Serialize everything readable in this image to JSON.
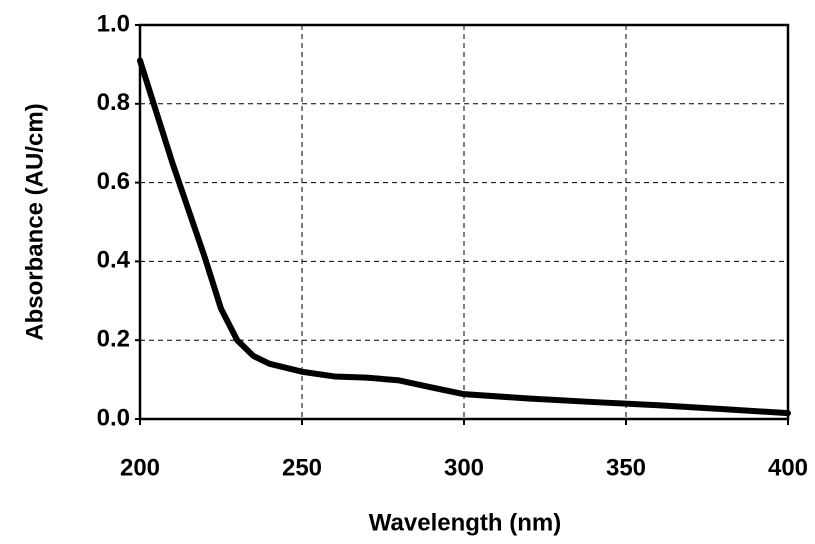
{
  "chart_data": {
    "type": "line",
    "x_label": "Wavelength (nm)",
    "y_label": "Absorbance (AU/cm)",
    "x": [
      200,
      205,
      210,
      215,
      220,
      225,
      230,
      235,
      240,
      250,
      260,
      270,
      280,
      290,
      300,
      320,
      340,
      360,
      380,
      400
    ],
    "series": [
      {
        "color": "#000000",
        "values": [
          0.91,
          0.78,
          0.65,
          0.53,
          0.41,
          0.28,
          0.2,
          0.16,
          0.14,
          0.12,
          0.108,
          0.105,
          0.098,
          0.08,
          0.063,
          0.052,
          0.043,
          0.035,
          0.025,
          0.015
        ]
      }
    ],
    "xlim": [
      200,
      400
    ],
    "xticks": [
      200,
      250,
      300,
      350,
      400
    ],
    "ylim": [
      0,
      1
    ],
    "yticks": [
      {
        "value": 0,
        "label": "0.0"
      },
      0.2,
      0.4,
      0.6,
      0.8,
      {
        "value": 1,
        "label": "1.0"
      }
    ],
    "grid": true
  }
}
